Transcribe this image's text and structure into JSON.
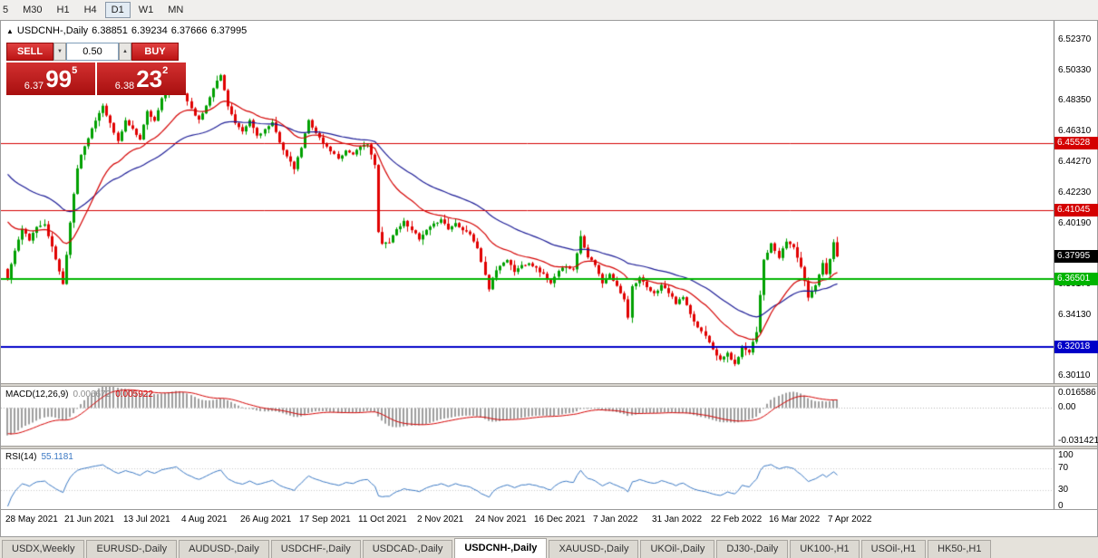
{
  "toolbar": {
    "timeframes": [
      {
        "label": "5",
        "active": false
      },
      {
        "label": "M30",
        "active": false
      },
      {
        "label": "H1",
        "active": false
      },
      {
        "label": "H4",
        "active": false
      },
      {
        "label": "D1",
        "active": true
      },
      {
        "label": "W1",
        "active": false
      },
      {
        "label": "MN",
        "active": false
      }
    ]
  },
  "chart_header": {
    "arrow": "▲",
    "title": "USDCNH-,Daily",
    "open": "6.38851",
    "high": "6.39234",
    "low": "6.37666",
    "close": "6.37995"
  },
  "one_click": {
    "sell": "SELL",
    "buy": "BUY",
    "volume": "0.50",
    "bid_head": "6.37",
    "bid_big": "99",
    "bid_sup": "5",
    "ask_head": "6.38",
    "ask_big": "23",
    "ask_sup": "2"
  },
  "price_axis": {
    "labels": [
      "6.52370",
      "6.50330",
      "6.48350",
      "6.46310",
      "6.44270",
      "6.42230",
      "6.40190",
      "6.38150",
      "6.36170",
      "6.34130",
      "6.32090",
      "6.30110"
    ],
    "current": "6.37995"
  },
  "hlines": [
    {
      "value": 6.45528,
      "label": "6.45528",
      "color": "#d40000",
      "thickness": 1
    },
    {
      "value": 6.41045,
      "label": "6.41045",
      "color": "#d40000",
      "thickness": 1
    },
    {
      "value": 6.36501,
      "label": "6.36501",
      "color": "#00b400",
      "thickness": 2
    },
    {
      "value": 6.32018,
      "label": "6.32018",
      "color": "#0000c8",
      "thickness": 2
    }
  ],
  "macd": {
    "name": "MACD(12,26,9)",
    "main_value": "0.006672",
    "signal_value": "0.005922",
    "axis_top": "0.016586",
    "axis_zero": "0.00",
    "axis_bottom": "-0.031421"
  },
  "rsi": {
    "name": "RSI(14)",
    "value": "55.1181",
    "axis": [
      "100",
      "70",
      "30",
      "0"
    ],
    "levels": [
      70,
      30
    ]
  },
  "tabs": [
    {
      "label": "USDX,Weekly",
      "active": false
    },
    {
      "label": "EURUSD-,Daily",
      "active": false
    },
    {
      "label": "AUDUSD-,Daily",
      "active": false
    },
    {
      "label": "USDCHF-,Daily",
      "active": false
    },
    {
      "label": "USDCAD-,Daily",
      "active": false
    },
    {
      "label": "USDCNH-,Daily",
      "active": true
    },
    {
      "label": "XAUUSD-,Daily",
      "active": false
    },
    {
      "label": "UKOil-,Daily",
      "active": false
    },
    {
      "label": "DJ30-,Daily",
      "active": false
    },
    {
      "label": "UK100-,H1",
      "active": false
    },
    {
      "label": "USOil-,H1",
      "active": false
    },
    {
      "label": "HK50-,H1",
      "active": false
    }
  ],
  "chart_data": {
    "type": "candlestick",
    "symbol": "USDCNH-",
    "period": "Daily",
    "ohlc_current": {
      "open": 6.38851,
      "high": 6.39234,
      "low": 6.37666,
      "close": 6.37995
    },
    "y_range": [
      6.296,
      6.536
    ],
    "n": 227,
    "seed": 11,
    "wick_amp": 0.0035,
    "ma_fast_period": 20,
    "ma_slow_period": 45,
    "colors": {
      "up": "#00a000",
      "down": "#e00000",
      "ma_fast": "#d40000",
      "ma_slow": "#1c1c96",
      "macd_hist": "#9e9e9e",
      "macd_signal": "#d40000",
      "rsi": "#3a78c3"
    },
    "x_labels": [
      {
        "i": 0,
        "label": "28 May 2021"
      },
      {
        "i": 16,
        "label": "21 Jun 2021"
      },
      {
        "i": 32,
        "label": "13 Jul 2021"
      },
      {
        "i": 48,
        "label": "4 Aug 2021"
      },
      {
        "i": 64,
        "label": "26 Aug 2021"
      },
      {
        "i": 80,
        "label": "17 Sep 2021"
      },
      {
        "i": 96,
        "label": "11 Oct 2021"
      },
      {
        "i": 112,
        "label": "2 Nov 2021"
      },
      {
        "i": 128,
        "label": "24 Nov 2021"
      },
      {
        "i": 144,
        "label": "16 Dec 2021"
      },
      {
        "i": 160,
        "label": "7 Jan 2022"
      },
      {
        "i": 176,
        "label": "31 Jan 2022"
      },
      {
        "i": 192,
        "label": "22 Feb 2022"
      },
      {
        "i": 208,
        "label": "16 Mar 2022"
      },
      {
        "i": 224,
        "label": "7 Apr 2022"
      }
    ],
    "warmup_anchors": [
      [
        0,
        6.5
      ],
      [
        12,
        6.462
      ],
      [
        24,
        6.408
      ],
      [
        34,
        6.372
      ]
    ],
    "anchors": [
      [
        0,
        6.365
      ],
      [
        2,
        6.384
      ],
      [
        4,
        6.398
      ],
      [
        6,
        6.391
      ],
      [
        8,
        6.399
      ],
      [
        10,
        6.402
      ],
      [
        12,
        6.386
      ],
      [
        14,
        6.37
      ],
      [
        15,
        6.362
      ],
      [
        16,
        6.381
      ],
      [
        17,
        6.402
      ],
      [
        18,
        6.422
      ],
      [
        19,
        6.438
      ],
      [
        20,
        6.448
      ],
      [
        22,
        6.458
      ],
      [
        24,
        6.47
      ],
      [
        26,
        6.48
      ],
      [
        28,
        6.468
      ],
      [
        30,
        6.456
      ],
      [
        32,
        6.47
      ],
      [
        34,
        6.464
      ],
      [
        36,
        6.458
      ],
      [
        38,
        6.476
      ],
      [
        40,
        6.47
      ],
      [
        42,
        6.484
      ],
      [
        44,
        6.492
      ],
      [
        46,
        6.499
      ],
      [
        48,
        6.488
      ],
      [
        50,
        6.478
      ],
      [
        52,
        6.47
      ],
      [
        54,
        6.48
      ],
      [
        56,
        6.492
      ],
      [
        58,
        6.5
      ],
      [
        60,
        6.48
      ],
      [
        62,
        6.468
      ],
      [
        64,
        6.462
      ],
      [
        66,
        6.47
      ],
      [
        68,
        6.46
      ],
      [
        70,
        6.464
      ],
      [
        72,
        6.468
      ],
      [
        74,
        6.456
      ],
      [
        76,
        6.446
      ],
      [
        78,
        6.438
      ],
      [
        80,
        6.452
      ],
      [
        82,
        6.47
      ],
      [
        84,
        6.462
      ],
      [
        86,
        6.455
      ],
      [
        88,
        6.45
      ],
      [
        90,
        6.445
      ],
      [
        92,
        6.45
      ],
      [
        94,
        6.448
      ],
      [
        96,
        6.452
      ],
      [
        98,
        6.455
      ],
      [
        100,
        6.44
      ],
      [
        101,
        6.396
      ],
      [
        102,
        6.388
      ],
      [
        104,
        6.39
      ],
      [
        106,
        6.398
      ],
      [
        108,
        6.403
      ],
      [
        110,
        6.398
      ],
      [
        112,
        6.391
      ],
      [
        114,
        6.397
      ],
      [
        116,
        6.401
      ],
      [
        118,
        6.405
      ],
      [
        120,
        6.398
      ],
      [
        122,
        6.402
      ],
      [
        124,
        6.398
      ],
      [
        126,
        6.395
      ],
      [
        128,
        6.385
      ],
      [
        130,
        6.368
      ],
      [
        131,
        6.358
      ],
      [
        132,
        6.366
      ],
      [
        134,
        6.374
      ],
      [
        136,
        6.378
      ],
      [
        138,
        6.37
      ],
      [
        140,
        6.374
      ],
      [
        142,
        6.376
      ],
      [
        144,
        6.372
      ],
      [
        146,
        6.368
      ],
      [
        148,
        6.362
      ],
      [
        150,
        6.37
      ],
      [
        152,
        6.374
      ],
      [
        154,
        6.371
      ],
      [
        156,
        6.394
      ],
      [
        157,
        6.386
      ],
      [
        158,
        6.38
      ],
      [
        160,
        6.374
      ],
      [
        162,
        6.362
      ],
      [
        164,
        6.368
      ],
      [
        166,
        6.36
      ],
      [
        168,
        6.352
      ],
      [
        169,
        6.34
      ],
      [
        170,
        6.36
      ],
      [
        172,
        6.366
      ],
      [
        174,
        6.359
      ],
      [
        176,
        6.355
      ],
      [
        178,
        6.361
      ],
      [
        180,
        6.356
      ],
      [
        182,
        6.349
      ],
      [
        184,
        6.353
      ],
      [
        186,
        6.341
      ],
      [
        188,
        6.333
      ],
      [
        190,
        6.328
      ],
      [
        192,
        6.319
      ],
      [
        194,
        6.311
      ],
      [
        196,
        6.316
      ],
      [
        198,
        6.308
      ],
      [
        200,
        6.32
      ],
      [
        202,
        6.317
      ],
      [
        204,
        6.33
      ],
      [
        205,
        6.355
      ],
      [
        206,
        6.378
      ],
      [
        208,
        6.388
      ],
      [
        210,
        6.379
      ],
      [
        212,
        6.39
      ],
      [
        214,
        6.386
      ],
      [
        216,
        6.373
      ],
      [
        218,
        6.353
      ],
      [
        220,
        6.361
      ],
      [
        222,
        6.376
      ],
      [
        223,
        6.368
      ],
      [
        224,
        6.379
      ],
      [
        225,
        6.39
      ],
      [
        226,
        6.38
      ]
    ]
  }
}
